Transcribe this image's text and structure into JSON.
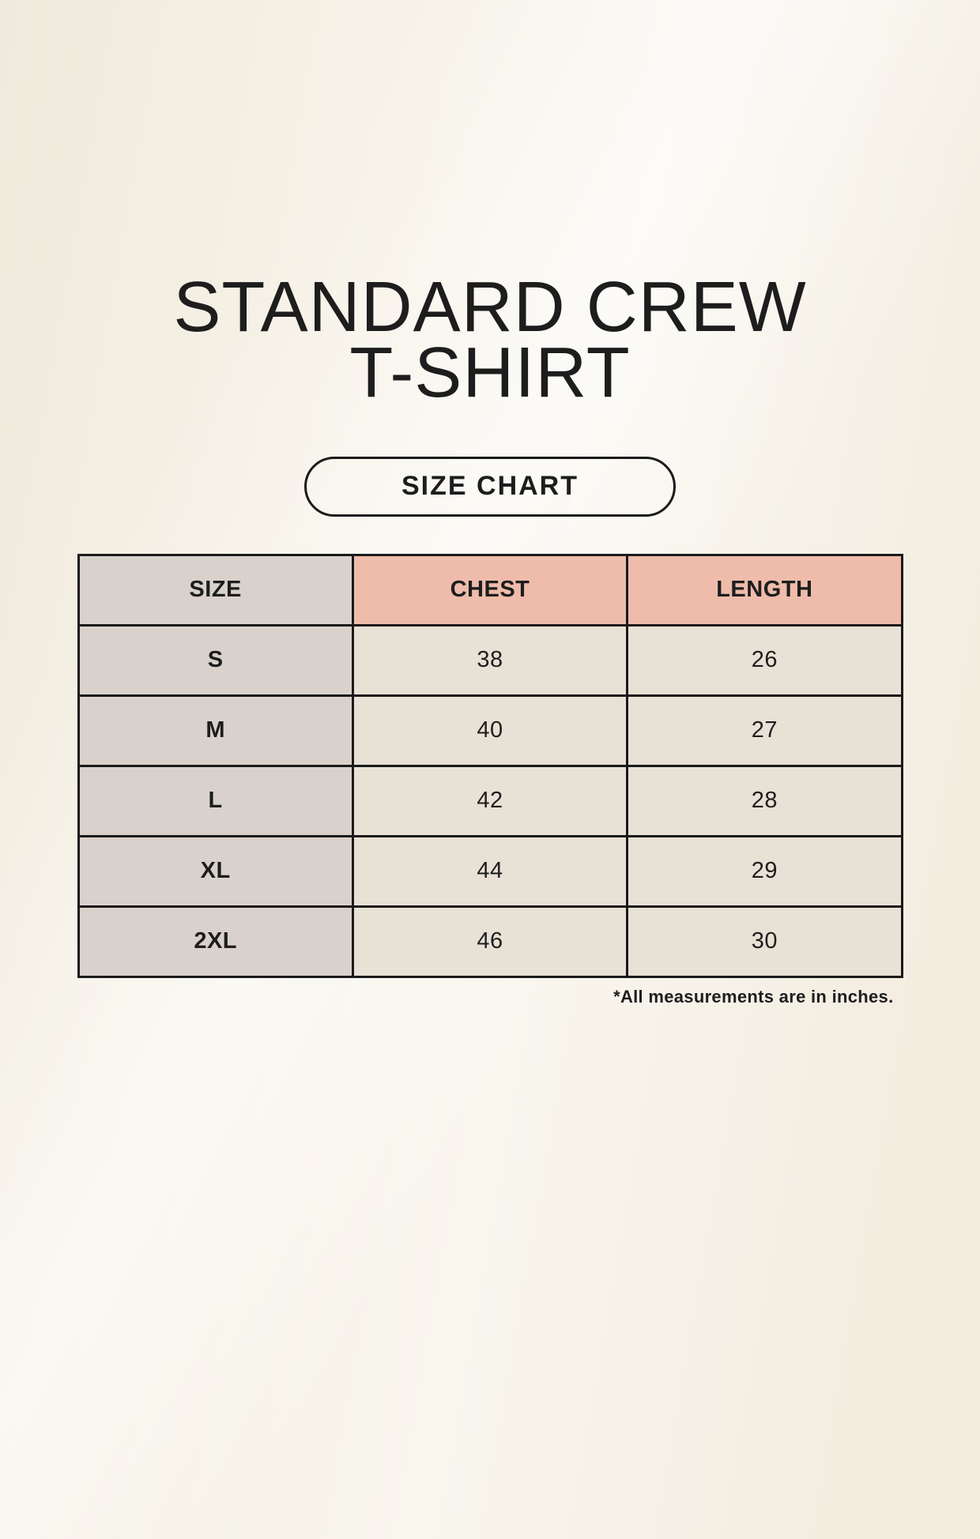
{
  "header": {
    "title_lines": [
      "STANDARD CREW",
      "T-SHIRT"
    ],
    "badge_label": "SIZE CHART"
  },
  "chart_data": {
    "type": "table",
    "title": "STANDARD CREW T-SHIRT",
    "subtitle": "SIZE CHART",
    "columns": [
      "SIZE",
      "CHEST",
      "LENGTH"
    ],
    "rows": [
      [
        "S",
        38,
        26
      ],
      [
        "M",
        40,
        27
      ],
      [
        "L",
        42,
        28
      ],
      [
        "XL",
        44,
        29
      ],
      [
        "2XL",
        46,
        30
      ]
    ],
    "footnote": "*All measurements are in inches.",
    "units": "inches",
    "layout_hints": {
      "columns_equal_width": true,
      "grid": "solid black borders",
      "header_label_column_shaded": true
    }
  },
  "colors": {
    "page_bg": "#f6f1e6",
    "border": "#1a1a1a",
    "text": "#1d1d1d",
    "header_label_bg": "#d9d2cc",
    "header_measure_bg": "#efbcab",
    "row_label_bg": "#d9d2cc",
    "row_value_bg": "#e8e1d5"
  }
}
